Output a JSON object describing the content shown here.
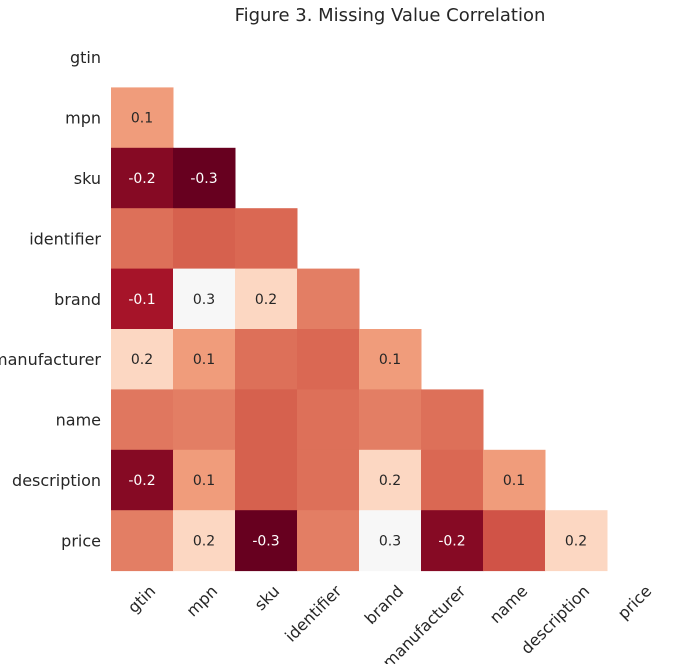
{
  "chart_data": {
    "type": "heatmap",
    "title": "Figure 3. Missing Value Correlation",
    "xlabel": "",
    "ylabel": "",
    "row_labels": [
      "gtin",
      "mpn",
      "sku",
      "identifier",
      "brand",
      "manufacturer",
      "name",
      "description",
      "price"
    ],
    "col_labels": [
      "gtin",
      "mpn",
      "sku",
      "identifier",
      "brand",
      "manufacturer",
      "name",
      "description",
      "price"
    ],
    "mask": "upper triangle including diagonal",
    "color_scale": "diverging red (RdBu), negative = dark red, positive = light",
    "annotations_shown": "values with |v| >= 0.1",
    "values": [
      [],
      [
        0.1
      ],
      [
        -0.2,
        -0.3
      ],
      [
        0.04,
        0.02,
        0.03
      ],
      [
        -0.1,
        0.3,
        0.2,
        0.06
      ],
      [
        0.2,
        0.1,
        0.04,
        0.03,
        0.1
      ],
      [
        0.05,
        0.06,
        0.02,
        0.04,
        0.06,
        0.04
      ],
      [
        -0.2,
        0.1,
        0.02,
        0.04,
        0.2,
        0.03,
        0.1
      ],
      [
        0.06,
        0.2,
        -0.3,
        0.06,
        0.3,
        -0.2,
        0.01,
        0.2
      ]
    ]
  }
}
